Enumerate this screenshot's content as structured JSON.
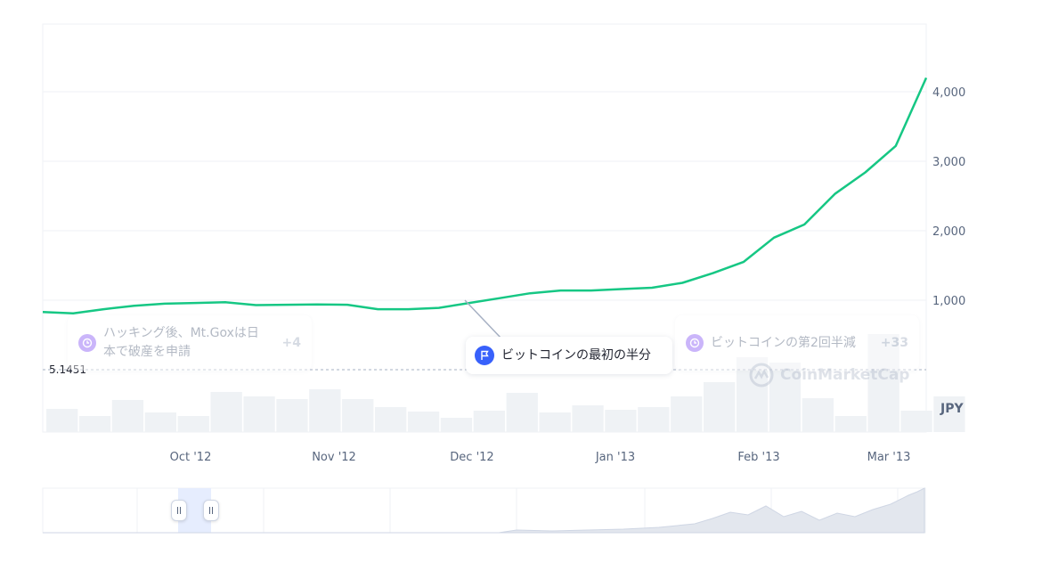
{
  "chart_data": {
    "type": "line",
    "currency": "JPY",
    "y_ticks": [
      "1,000",
      "2,000",
      "3,000",
      "4,000"
    ],
    "ylim": [
      0,
      5000
    ],
    "x_ticks": [
      "Oct '12",
      "Nov '12",
      "Dec '12",
      "Jan '13",
      "Feb '13",
      "Mar '13"
    ],
    "series": [
      {
        "color": "#16c784",
        "values": [
          830,
          810,
          870,
          920,
          950,
          960,
          970,
          930,
          935,
          940,
          935,
          870,
          870,
          890,
          960,
          1030,
          1100,
          1140,
          1140,
          1160,
          1180,
          1250,
          1390,
          1550,
          1900,
          2090,
          2530,
          2840,
          3220,
          4200
        ]
      }
    ],
    "volume_values": [
      26,
      18,
      36,
      22,
      18,
      45,
      40,
      37,
      48,
      37,
      28,
      23,
      16,
      24,
      44,
      22,
      30,
      25,
      28,
      40,
      56,
      84,
      78,
      38,
      18,
      110,
      24,
      40
    ],
    "reference_line": {
      "value": "5.1451"
    },
    "grid": true
  },
  "events": [
    {
      "text": "ハッキング後、Mt.Goxは日本で破産を申請",
      "more": "+4"
    },
    {
      "text": "ビットコインの最初の半分",
      "more": ""
    },
    {
      "text": "ビットコインの第2回半減",
      "more": "+33"
    }
  ],
  "watermark": "CoinMarketCap"
}
